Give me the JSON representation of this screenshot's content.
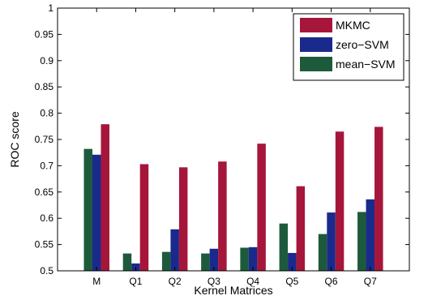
{
  "chart_data": {
    "type": "bar",
    "title": "",
    "xlabel": "Kernel Matrices",
    "ylabel": "ROC score",
    "categories": [
      "M",
      "Q1",
      "Q2",
      "Q3",
      "Q4",
      "Q5",
      "Q6",
      "Q7"
    ],
    "ylim": [
      0.5,
      1
    ],
    "yticks": [
      "0.5",
      "0.55",
      "0.6",
      "0.65",
      "0.7",
      "0.75",
      "0.8",
      "0.85",
      "0.9",
      "0.95",
      "1"
    ],
    "legend_position": "top-right",
    "grid": false,
    "series": [
      {
        "name": "mean−SVM",
        "color": "#1d5a3c",
        "values": [
          0.732,
          0.533,
          0.536,
          0.533,
          0.544,
          0.59,
          0.57,
          0.612
        ]
      },
      {
        "name": "zero−SVM",
        "color": "#1a2a8c",
        "values": [
          0.721,
          0.514,
          0.579,
          0.542,
          0.545,
          0.534,
          0.611,
          0.636
        ]
      },
      {
        "name": "MKMC",
        "color": "#a6163a",
        "values": [
          0.779,
          0.703,
          0.697,
          0.708,
          0.742,
          0.661,
          0.765,
          0.774
        ]
      }
    ],
    "legend_order": [
      "MKMC",
      "zero−SVM",
      "mean−SVM"
    ]
  }
}
